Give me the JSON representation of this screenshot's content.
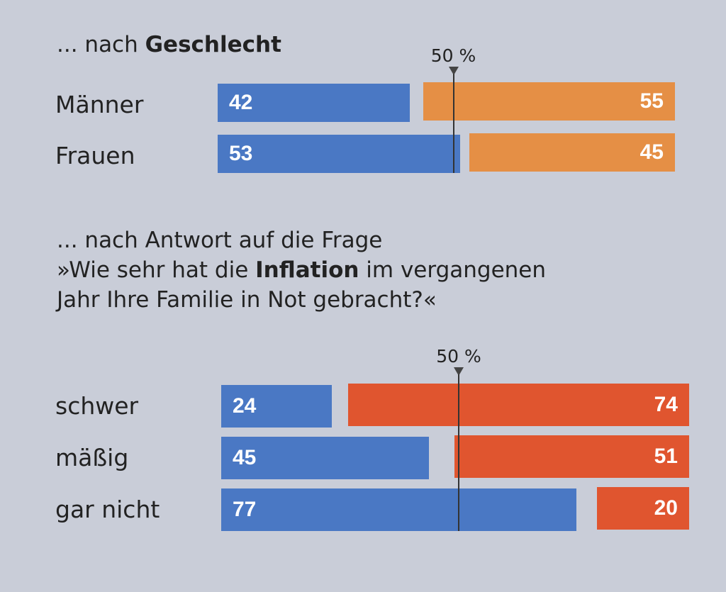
{
  "colors": {
    "blue": "#4a78c4",
    "orange_gender": "#e58f45",
    "orange": "#e0552f"
  },
  "chart_data": [
    {
      "type": "bar",
      "title_prefix": "... nach ",
      "title_bold": "Geschlecht",
      "marker_label": "50 %",
      "marker_value": 50,
      "categories": [
        "Männer",
        "Frauen"
      ],
      "series": [
        {
          "name": "blue",
          "values": [
            42,
            53
          ]
        },
        {
          "name": "orange",
          "values": [
            55,
            45
          ]
        }
      ],
      "xlim": [
        0,
        100
      ]
    },
    {
      "type": "bar",
      "title_line1": "... nach Antwort auf die Frage",
      "title_line2_pre": "»Wie sehr hat die ",
      "title_line2_bold": "Inflation",
      "title_line2_post": " im vergangenen",
      "title_line3": "Jahr Ihre Familie in Not gebracht?«",
      "marker_label": "50 %",
      "marker_value": 50,
      "categories": [
        "schwer",
        "mäßig",
        "gar nicht"
      ],
      "series": [
        {
          "name": "blue",
          "values": [
            24,
            45,
            77
          ]
        },
        {
          "name": "orange",
          "values": [
            74,
            51,
            20
          ]
        }
      ],
      "xlim": [
        0,
        100
      ]
    }
  ]
}
